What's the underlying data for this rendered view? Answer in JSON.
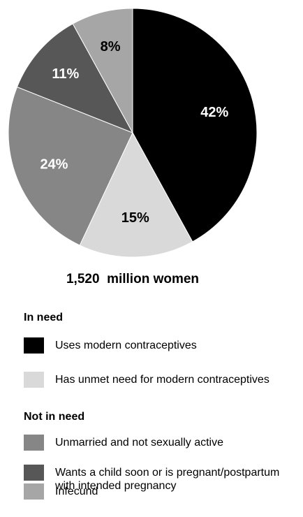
{
  "chart_data": {
    "type": "pie",
    "caption": "1,520  million women",
    "slices": [
      {
        "label": "Uses modern contraceptives",
        "value": 42,
        "value_label": "42%",
        "color": "#000000",
        "label_color": "#ffffff"
      },
      {
        "label": "Has unmet need for modern contraceptives",
        "value": 15,
        "value_label": "15%",
        "color": "#d9d9d9",
        "label_color": "#000000"
      },
      {
        "label": "Unmarried and not sexually active",
        "value": 24,
        "value_label": "24%",
        "color": "#868686",
        "label_color": "#ffffff"
      },
      {
        "label": "Wants a child soon or is pregnant/postpartum with intended pregnancy",
        "value": 11,
        "value_label": "11%",
        "color": "#575757",
        "label_color": "#ffffff"
      },
      {
        "label": "Infecund",
        "value": 8,
        "value_label": "8%",
        "color": "#a6a6a6",
        "label_color": "#000000"
      }
    ]
  },
  "legend": {
    "groups": [
      {
        "title": "In need",
        "items": [
          {
            "label": "Uses modern contraceptives",
            "color": "#000000"
          },
          {
            "label": "Has unmet need for modern contraceptives",
            "color": "#d9d9d9"
          }
        ]
      },
      {
        "title": "Not in need",
        "items": [
          {
            "label": "Unmarried and not sexually active",
            "color": "#868686"
          },
          {
            "label": "Wants a child soon or is pregnant/postpartum with intended pregnancy",
            "color": "#575757"
          },
          {
            "label": "Infecund",
            "color": "#a6a6a6"
          }
        ]
      }
    ]
  }
}
